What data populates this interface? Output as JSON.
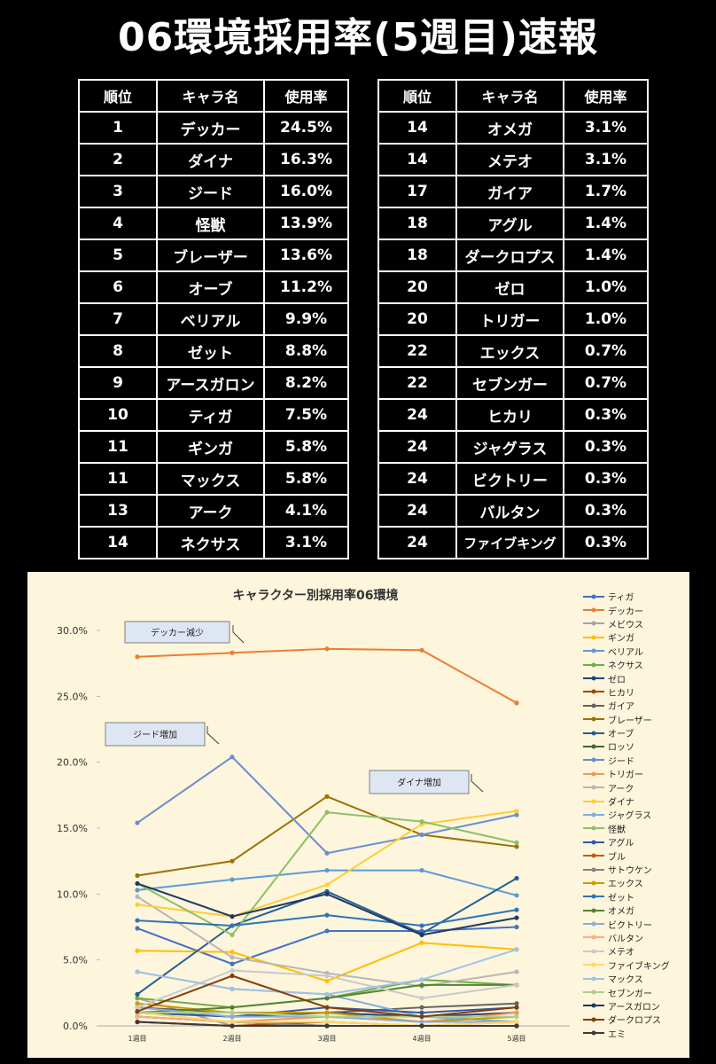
{
  "title": "06環境採用率(5週目)速報",
  "table": {
    "headers": [
      "順位",
      "キャラ名",
      "使用率"
    ],
    "left_rows": [
      [
        "1",
        "デッカー",
        "24.5%"
      ],
      [
        "2",
        "ダイナ",
        "16.3%"
      ],
      [
        "3",
        "ジード",
        "16.0%"
      ],
      [
        "4",
        "怪獣",
        "13.9%"
      ],
      [
        "5",
        "ブレーザー",
        "13.6%"
      ],
      [
        "6",
        "オーブ",
        "11.2%"
      ],
      [
        "7",
        "ベリアル",
        "9.9%"
      ],
      [
        "8",
        "ゼット",
        "8.8%"
      ],
      [
        "9",
        "アースガロン",
        "8.2%"
      ],
      [
        "10",
        "ティガ",
        "7.5%"
      ],
      [
        "11",
        "ギンガ",
        "5.8%"
      ],
      [
        "11",
        "マックス",
        "5.8%"
      ],
      [
        "13",
        "アーク",
        "4.1%"
      ],
      [
        "14",
        "ネクサス",
        "3.1%"
      ]
    ],
    "right_rows": [
      [
        "14",
        "オメガ",
        "3.1%"
      ],
      [
        "14",
        "メテオ",
        "3.1%"
      ],
      [
        "17",
        "ガイア",
        "1.7%"
      ],
      [
        "18",
        "アグル",
        "1.4%"
      ],
      [
        "18",
        "ダークロプス",
        "1.4%"
      ],
      [
        "20",
        "ゼロ",
        "1.0%"
      ],
      [
        "20",
        "トリガー",
        "1.0%"
      ],
      [
        "22",
        "エックス",
        "0.7%"
      ],
      [
        "22",
        "セブンガー",
        "0.7%"
      ],
      [
        "24",
        "ヒカリ",
        "0.3%"
      ],
      [
        "24",
        "ジャグラス",
        "0.3%"
      ],
      [
        "24",
        "ビクトリー",
        "0.3%"
      ],
      [
        "24",
        "バルタン",
        "0.3%"
      ],
      [
        "24",
        "ファイブキング",
        "0.3%"
      ]
    ]
  },
  "chart_data": {
    "type": "line",
    "title": "キャラクター別採用率06環境",
    "categories": [
      "1週目",
      "2週目",
      "3週目",
      "4週目",
      "5週目"
    ],
    "ylim": [
      0,
      30
    ],
    "yticks": [
      "0.0%",
      "5.0%",
      "10.0%",
      "15.0%",
      "20.0%",
      "25.0%",
      "30.0%"
    ],
    "legend_position": "right",
    "annotations": [
      {
        "text": "デッカー減少",
        "series": "デッカー"
      },
      {
        "text": "ジード増加",
        "series": "ジード"
      },
      {
        "text": "ダイナ増加",
        "series": "ダイナ"
      }
    ],
    "series": [
      {
        "name": "ティガ",
        "color": "#4472c4",
        "values": [
          7.4,
          4.7,
          7.2,
          7.2,
          7.5
        ]
      },
      {
        "name": "デッカー",
        "color": "#ed7d31",
        "values": [
          28.0,
          28.3,
          28.6,
          28.5,
          24.5
        ]
      },
      {
        "name": "メビウス",
        "color": "#a5a5a5",
        "values": [
          2.1,
          0.0,
          0.0,
          0.0,
          0.0
        ]
      },
      {
        "name": "ギンガ",
        "color": "#ffc000",
        "values": [
          5.7,
          5.6,
          3.4,
          6.3,
          5.8
        ]
      },
      {
        "name": "ベリアル",
        "color": "#5b9bd5",
        "values": [
          10.3,
          11.1,
          11.8,
          11.8,
          9.9
        ]
      },
      {
        "name": "ネクサス",
        "color": "#70ad47",
        "values": [
          2.1,
          1.4,
          2.1,
          3.5,
          3.1
        ]
      },
      {
        "name": "ゼロ",
        "color": "#264478",
        "values": [
          1.0,
          0.7,
          1.0,
          0.7,
          1.0
        ]
      },
      {
        "name": "ヒカリ",
        "color": "#9e480e",
        "values": [
          0.3,
          0.0,
          0.3,
          0.0,
          0.3
        ]
      },
      {
        "name": "ガイア",
        "color": "#636363",
        "values": [
          1.4,
          1.0,
          1.0,
          1.4,
          1.7
        ]
      },
      {
        "name": "ブレーザー",
        "color": "#997300",
        "values": [
          11.4,
          12.5,
          17.4,
          14.5,
          13.6
        ]
      },
      {
        "name": "オーブ",
        "color": "#255e91",
        "values": [
          2.4,
          7.6,
          10.2,
          7.0,
          11.2
        ]
      },
      {
        "name": "ロッソ",
        "color": "#43682b",
        "values": [
          0.7,
          0.3,
          0.0,
          0.0,
          0.0
        ]
      },
      {
        "name": "ジード",
        "color": "#698ed0",
        "values": [
          15.4,
          20.4,
          13.1,
          14.5,
          16.0
        ]
      },
      {
        "name": "トリガー",
        "color": "#f1975a",
        "values": [
          0.7,
          0.3,
          0.7,
          0.3,
          1.0
        ]
      },
      {
        "name": "アーク",
        "color": "#b7b7b7",
        "values": [
          9.8,
          5.2,
          4.0,
          3.0,
          4.1
        ]
      },
      {
        "name": "ダイナ",
        "color": "#ffcd33",
        "values": [
          9.2,
          8.3,
          10.7,
          15.3,
          16.3
        ]
      },
      {
        "name": "ジャグラス",
        "color": "#7cafdd",
        "values": [
          4.1,
          2.8,
          2.4,
          0.7,
          0.3
        ]
      },
      {
        "name": "怪獣",
        "color": "#8cc168",
        "values": [
          10.8,
          6.9,
          16.2,
          15.5,
          13.9
        ]
      },
      {
        "name": "アグル",
        "color": "#335aa1",
        "values": [
          1.0,
          0.7,
          1.4,
          1.0,
          1.4
        ]
      },
      {
        "name": "ブル",
        "color": "#c65911",
        "values": [
          0.3,
          0.0,
          0.0,
          0.0,
          0.0
        ]
      },
      {
        "name": "サトウケン",
        "color": "#848484",
        "values": [
          0.7,
          0.3,
          0.0,
          0.0,
          0.0
        ]
      },
      {
        "name": "エックス",
        "color": "#cc9a00",
        "values": [
          1.7,
          1.0,
          1.0,
          0.3,
          0.7
        ]
      },
      {
        "name": "ゼット",
        "color": "#2e75b6",
        "values": [
          8.0,
          7.6,
          8.4,
          7.6,
          8.8
        ]
      },
      {
        "name": "オメガ",
        "color": "#548235",
        "values": [
          1.0,
          1.4,
          2.1,
          3.1,
          3.1
        ]
      },
      {
        "name": "ビクトリー",
        "color": "#8faadc",
        "values": [
          1.4,
          0.7,
          0.7,
          0.3,
          0.3
        ]
      },
      {
        "name": "バルタン",
        "color": "#f4b183",
        "values": [
          0.7,
          0.3,
          0.3,
          0.0,
          0.3
        ]
      },
      {
        "name": "メテオ",
        "color": "#c9c9c9",
        "values": [
          1.4,
          4.2,
          3.8,
          2.1,
          3.1
        ]
      },
      {
        "name": "ファイブキング",
        "color": "#ffd966",
        "values": [
          1.0,
          0.3,
          0.3,
          0.0,
          0.3
        ]
      },
      {
        "name": "マックス",
        "color": "#9dc3e6",
        "values": [
          4.1,
          2.8,
          2.4,
          3.5,
          5.8
        ]
      },
      {
        "name": "セブンガー",
        "color": "#a9d18e",
        "values": [
          1.0,
          1.0,
          0.7,
          0.7,
          0.7
        ]
      },
      {
        "name": "アースガロン",
        "color": "#1f3864",
        "values": [
          10.8,
          8.3,
          10.0,
          6.9,
          8.2
        ]
      },
      {
        "name": "ダークロプス",
        "color": "#843c0c",
        "values": [
          1.1,
          3.8,
          1.4,
          0.7,
          1.4
        ]
      },
      {
        "name": "エミ",
        "color": "#3b3b3b",
        "values": [
          0.3,
          0.0,
          0.0,
          0.0,
          0.0
        ]
      }
    ]
  }
}
